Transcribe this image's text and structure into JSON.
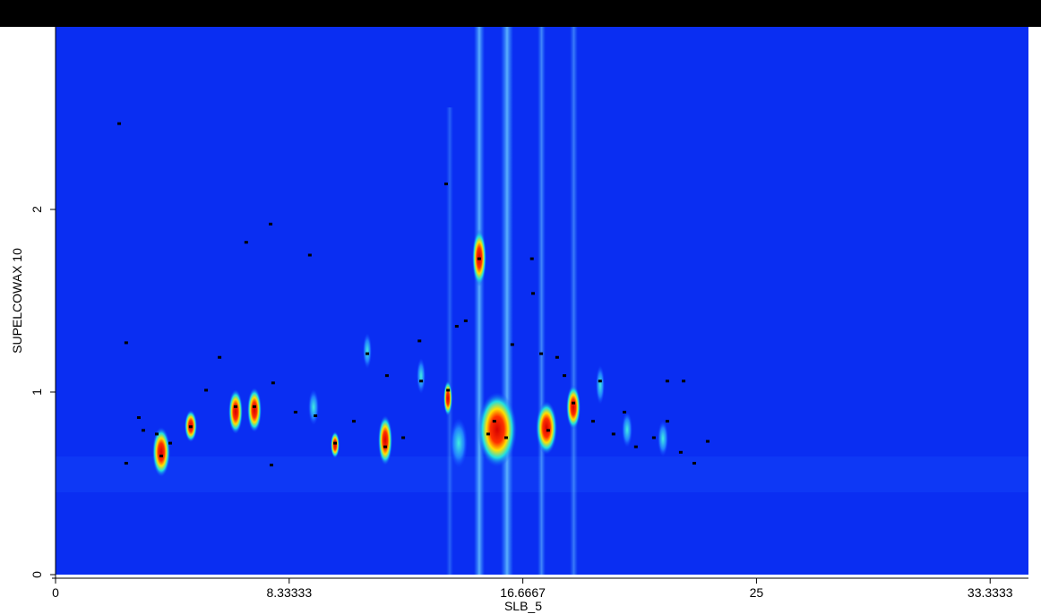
{
  "chart_data": {
    "type": "scatter",
    "x_label": "SLB_5",
    "y_label": "SUPELCOWAX 10",
    "xlim": [
      0,
      34.7
    ],
    "ylim": [
      0,
      3
    ],
    "xticks": [
      0,
      8.33333,
      16.6667,
      25,
      33.3333
    ],
    "yticks": [
      0,
      1,
      2
    ],
    "color": "#000000",
    "x": [
      2.27,
      2.52,
      2.52,
      2.97,
      3.13,
      3.61,
      3.77,
      4.09,
      4.82,
      5.37,
      5.85,
      6.42,
      6.8,
      7.09,
      7.67,
      7.7,
      7.76,
      8.56,
      9.07,
      9.27,
      9.97,
      10.64,
      11.12,
      11.76,
      11.82,
      12.4,
      12.98,
      13.04,
      13.93,
      14.0,
      14.31,
      14.63,
      15.11,
      15.43,
      15.65,
      16.07,
      16.29,
      16.99,
      17.03,
      17.32,
      17.57,
      17.89,
      18.15,
      18.47,
      19.17,
      19.42,
      19.9,
      20.29,
      20.7,
      21.34,
      21.82,
      21.82,
      22.3,
      22.4,
      22.78,
      23.26
    ],
    "y": [
      2.47,
      1.27,
      0.61,
      0.86,
      0.79,
      0.77,
      0.65,
      0.72,
      0.81,
      1.01,
      1.19,
      0.92,
      1.82,
      0.92,
      1.92,
      0.6,
      1.05,
      0.89,
      1.75,
      0.87,
      0.72,
      0.84,
      1.21,
      0.7,
      1.09,
      0.75,
      1.28,
      1.06,
      2.14,
      1.01,
      1.36,
      1.39,
      1.73,
      0.77,
      0.84,
      0.75,
      1.26,
      1.73,
      1.54,
      1.21,
      0.79,
      1.19,
      1.09,
      0.94,
      0.84,
      1.06,
      0.77,
      0.89,
      0.7,
      0.75,
      1.06,
      0.84,
      0.67,
      1.06,
      0.61,
      0.73
    ]
  }
}
